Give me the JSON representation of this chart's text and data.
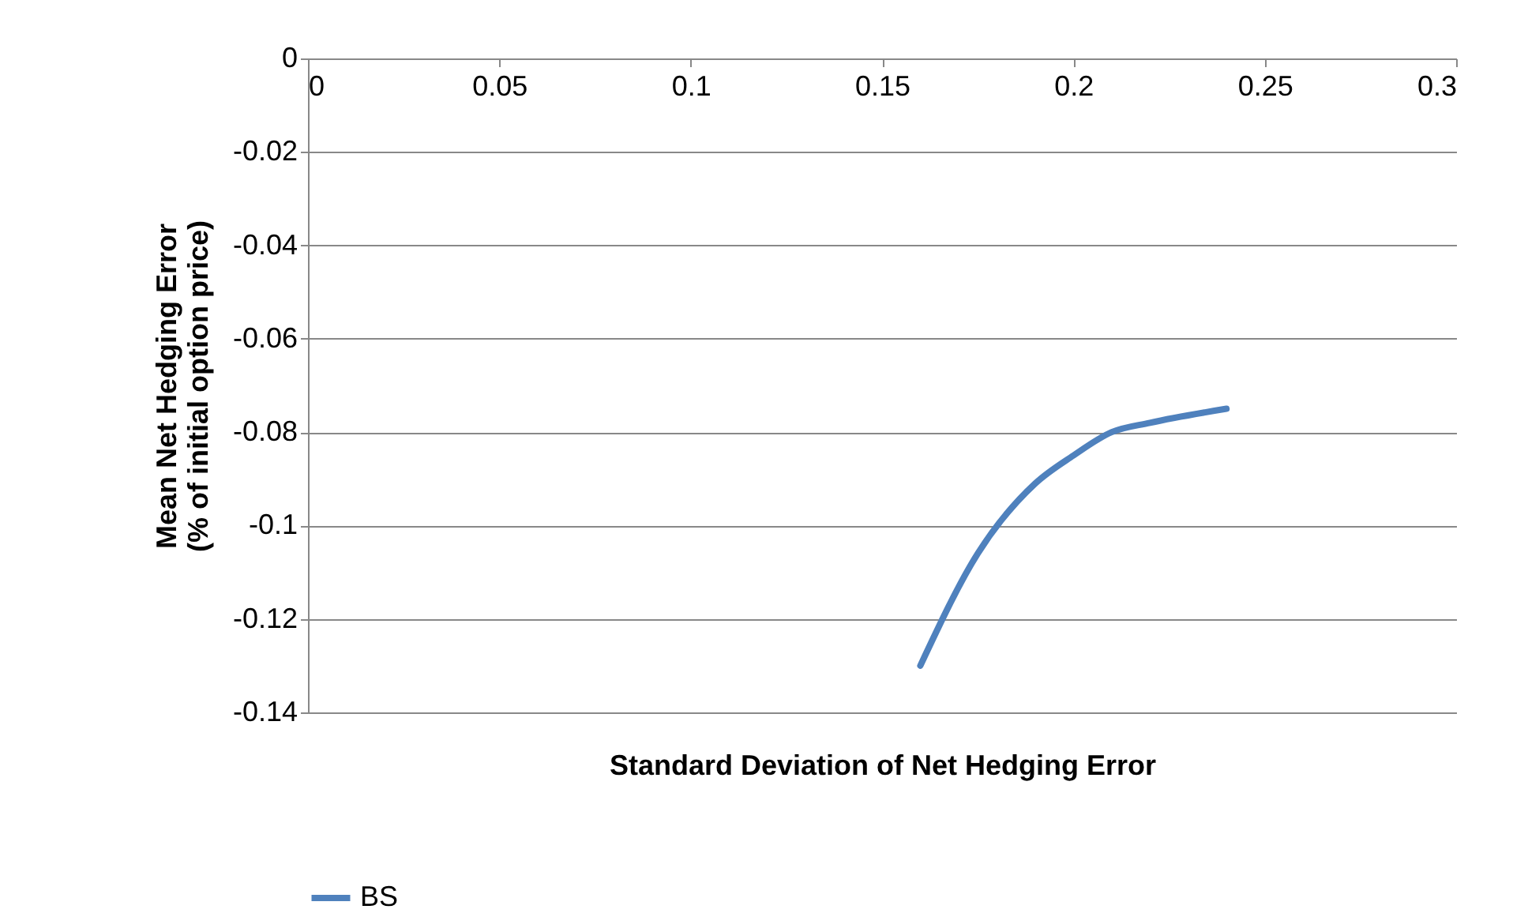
{
  "chart_data": {
    "type": "line",
    "xlabel": "Standard Deviation of Net Hedging Error",
    "ylabel": "Mean Net Hedging Error\n(% of initial option price)",
    "xlim": [
      0,
      0.3
    ],
    "xticks": [
      0,
      0.05,
      0.1,
      0.15,
      0.2,
      0.25,
      0.3
    ],
    "ylim": [
      -0.14,
      0
    ],
    "yticks": [
      0,
      -0.02,
      -0.04,
      -0.06,
      -0.08,
      -0.1,
      -0.12,
      -0.14
    ],
    "grid": "y",
    "legend": "bottom",
    "marker": "none",
    "line_style": "solid",
    "series": [
      {
        "name": "BS",
        "color": "#4f81bd",
        "x": [
          0.16,
          0.175,
          0.19,
          0.2,
          0.21,
          0.22,
          0.24
        ],
        "values": [
          -0.13,
          -0.106,
          -0.091,
          -0.085,
          -0.08,
          -0.078,
          -0.075
        ]
      }
    ]
  }
}
